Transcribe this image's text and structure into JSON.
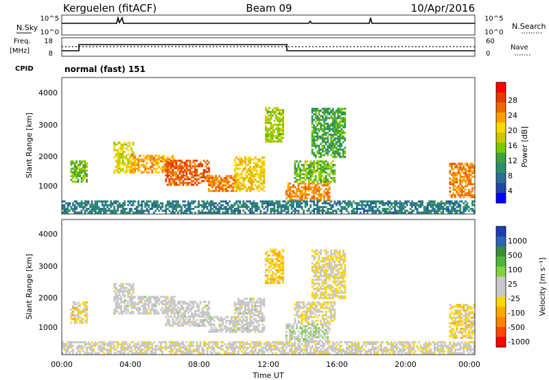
{
  "header": {
    "station": "Kerguelen (fitACF)",
    "beam": "Beam 09",
    "date": "10/Apr/2016"
  },
  "noise_panel": {
    "left_label": "N.Sky",
    "right_label": "N.Search",
    "ticks_left": [
      "10^5",
      "10^0"
    ],
    "ticks_right": [
      "10^5",
      "10^0"
    ]
  },
  "freq_panel": {
    "left_label_line1": "Freq.",
    "left_label_line2": "[MHz]",
    "right_label": "Nave",
    "ticks_left": [
      "18",
      "8"
    ],
    "ticks_right": [
      "60",
      "0"
    ]
  },
  "cpid": {
    "label": "CPID",
    "mode": "normal (fast) 151"
  },
  "axes": {
    "ylabel": "Slant Range [km]",
    "xlabel": "Time UT",
    "yticks": [
      "4000",
      "3000",
      "2000",
      "1000"
    ],
    "xticks": [
      "00:00",
      "04:00",
      "08:00",
      "12:00",
      "16:00",
      "20:00",
      "00:00"
    ]
  },
  "power_colorbar": {
    "label": "Power [dB]",
    "ticks": [
      "28",
      "24",
      "20",
      "16",
      "12",
      "8",
      "4"
    ],
    "colors": [
      "#ff0000",
      "#e63a00",
      "#f06a00",
      "#ffa000",
      "#ffd700",
      "#c8c800",
      "#7ec800",
      "#3ca03c",
      "#2d8c6e",
      "#2d6e96",
      "#1e46aa",
      "#0000ff"
    ]
  },
  "velocity_colorbar": {
    "label": "Velocity [m s⁻¹]",
    "ticks": [
      "1000",
      "500",
      "100",
      "25",
      "-25",
      "-100",
      "-500",
      "-1000"
    ],
    "colors": [
      "#1e3cb4",
      "#2d64b4",
      "#3c8c3c",
      "#50b43c",
      "#7ed23c",
      "#c8c8c8",
      "#c8c8c8",
      "#ffd700",
      "#ffaa00",
      "#ff8200",
      "#ff4600",
      "#ff0000"
    ]
  },
  "chart_data": [
    {
      "type": "heatmap",
      "title": "Power [dB]",
      "xlabel": "Time UT",
      "ylabel": "Slant Range [km]",
      "xlim": [
        "00:00",
        "24:00"
      ],
      "ylim": [
        180,
        4600
      ],
      "color_range": [
        0,
        32
      ],
      "patches": [
        {
          "t": [
            0.5,
            1.5
          ],
          "r": [
            1200,
            1900
          ],
          "v": 14
        },
        {
          "t": [
            3.0,
            4.2
          ],
          "r": [
            1500,
            2500
          ],
          "v": 18
        },
        {
          "t": [
            4.0,
            6.5
          ],
          "r": [
            1500,
            2100
          ],
          "v": 22
        },
        {
          "t": [
            6.0,
            8.5
          ],
          "r": [
            1100,
            1900
          ],
          "v": 26
        },
        {
          "t": [
            8.5,
            10.0
          ],
          "r": [
            900,
            1400
          ],
          "v": 24
        },
        {
          "t": [
            10.0,
            11.7
          ],
          "r": [
            900,
            2000
          ],
          "v": 20
        },
        {
          "t": [
            11.8,
            12.8
          ],
          "r": [
            2500,
            3600
          ],
          "v": 16
        },
        {
          "t": [
            13.0,
            15.5
          ],
          "r": [
            600,
            1200
          ],
          "v": 24
        },
        {
          "t": [
            13.5,
            15.8
          ],
          "r": [
            1200,
            1900
          ],
          "v": 14
        },
        {
          "t": [
            14.5,
            16.5
          ],
          "r": [
            2000,
            3600
          ],
          "v": 12
        },
        {
          "t": [
            22.5,
            24.0
          ],
          "r": [
            700,
            1800
          ],
          "v": 24
        },
        {
          "t": [
            0.0,
            24.0
          ],
          "r": [
            200,
            600
          ],
          "v": 8
        }
      ]
    },
    {
      "type": "heatmap",
      "title": "Velocity [m s⁻¹]",
      "xlabel": "Time UT",
      "ylabel": "Slant Range [km]",
      "xlim": [
        "00:00",
        "24:00"
      ],
      "ylim": [
        180,
        4600
      ],
      "color_range": [
        -1000,
        1000
      ],
      "patches": [
        {
          "t": [
            0.5,
            1.5
          ],
          "r": [
            1200,
            1900
          ],
          "v": -200
        },
        {
          "t": [
            3.0,
            4.2
          ],
          "r": [
            1500,
            2500
          ],
          "v": 0
        },
        {
          "t": [
            4.0,
            6.5
          ],
          "r": [
            1500,
            2100
          ],
          "v": 0
        },
        {
          "t": [
            6.0,
            8.5
          ],
          "r": [
            1100,
            1900
          ],
          "v": 0
        },
        {
          "t": [
            8.5,
            10.0
          ],
          "r": [
            900,
            1400
          ],
          "v": 0
        },
        {
          "t": [
            10.0,
            11.7
          ],
          "r": [
            900,
            2000
          ],
          "v": 0
        },
        {
          "t": [
            11.8,
            12.8
          ],
          "r": [
            2500,
            3600
          ],
          "v": -300
        },
        {
          "t": [
            13.0,
            15.5
          ],
          "r": [
            600,
            1200
          ],
          "v": 100
        },
        {
          "t": [
            13.5,
            15.8
          ],
          "r": [
            1200,
            1900
          ],
          "v": -100
        },
        {
          "t": [
            14.5,
            16.5
          ],
          "r": [
            2000,
            3600
          ],
          "v": -150
        },
        {
          "t": [
            22.5,
            24.0
          ],
          "r": [
            700,
            1800
          ],
          "v": -200
        },
        {
          "t": [
            0.0,
            24.0
          ],
          "r": [
            200,
            600
          ],
          "v": -60
        }
      ]
    }
  ]
}
